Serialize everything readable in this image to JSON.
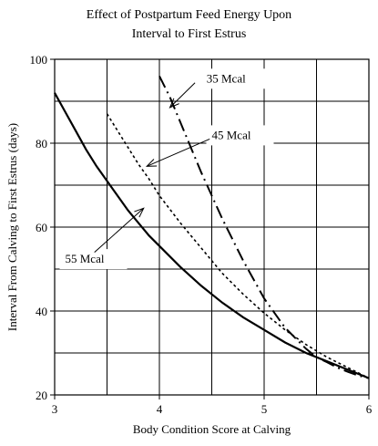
{
  "chart_data": {
    "type": "line",
    "title": [
      "Effect of Postpartum Feed Energy Upon",
      "Interval to First Estrus"
    ],
    "xlabel": "Body Condition Score at Calving",
    "ylabel": "Interval From Calving to First Estrus (days)",
    "xlim": [
      3,
      6
    ],
    "ylim": [
      20,
      100
    ],
    "xticks": [
      3,
      4,
      5,
      6
    ],
    "yticks": [
      20,
      40,
      60,
      80,
      100
    ],
    "grid": true,
    "series": [
      {
        "name": "35 Mcal",
        "style": "dash-dot",
        "color": "#000000",
        "points": [
          [
            4.0,
            96
          ],
          [
            4.1,
            91
          ],
          [
            4.2,
            85
          ],
          [
            4.3,
            79
          ],
          [
            4.4,
            73
          ],
          [
            4.5,
            67.5
          ],
          [
            4.6,
            62
          ],
          [
            4.7,
            57
          ],
          [
            4.8,
            52
          ],
          [
            4.9,
            47.5
          ],
          [
            5.0,
            43
          ],
          [
            5.1,
            39.5
          ],
          [
            5.2,
            36
          ],
          [
            5.3,
            33.5
          ],
          [
            5.4,
            31
          ],
          [
            5.5,
            29
          ],
          [
            5.6,
            27.8
          ],
          [
            5.7,
            26.5
          ],
          [
            5.8,
            25.5
          ],
          [
            5.9,
            24.6
          ],
          [
            6.0,
            24
          ]
        ]
      },
      {
        "name": "45 Mcal",
        "style": "dotted",
        "color": "#000000",
        "points": [
          [
            3.5,
            87
          ],
          [
            3.6,
            83
          ],
          [
            3.7,
            79
          ],
          [
            3.8,
            75
          ],
          [
            3.9,
            71.5
          ],
          [
            4.0,
            67.5
          ],
          [
            4.2,
            61
          ],
          [
            4.4,
            55
          ],
          [
            4.6,
            49
          ],
          [
            4.8,
            44
          ],
          [
            5.0,
            39.5
          ],
          [
            5.2,
            35.5
          ],
          [
            5.4,
            32
          ],
          [
            5.6,
            29
          ],
          [
            5.8,
            26.5
          ],
          [
            6.0,
            24
          ]
        ]
      },
      {
        "name": "55 Mcal",
        "style": "solid",
        "color": "#000000",
        "points": [
          [
            3.0,
            92
          ],
          [
            3.1,
            87.5
          ],
          [
            3.2,
            83
          ],
          [
            3.3,
            78.5
          ],
          [
            3.4,
            74.5
          ],
          [
            3.5,
            71
          ],
          [
            3.6,
            67.5
          ],
          [
            3.7,
            64
          ],
          [
            3.8,
            61
          ],
          [
            3.9,
            58
          ],
          [
            4.0,
            55.5
          ],
          [
            4.2,
            50.5
          ],
          [
            4.4,
            46
          ],
          [
            4.6,
            42
          ],
          [
            4.8,
            38.5
          ],
          [
            5.0,
            35.5
          ],
          [
            5.2,
            32.5
          ],
          [
            5.4,
            30
          ],
          [
            5.6,
            28
          ],
          [
            5.8,
            26
          ],
          [
            6.0,
            24
          ]
        ]
      }
    ],
    "annotations": [
      {
        "text": "35 Mcal",
        "series": "35 Mcal",
        "label_at": [
          4.45,
          94.5
        ],
        "arrow_from": [
          4.34,
          94.4
        ],
        "arrow_to": [
          4.1,
          88.5
        ]
      },
      {
        "text": "45 Mcal",
        "series": "45 Mcal",
        "label_at": [
          4.5,
          81
        ],
        "arrow_from": [
          4.48,
          81
        ],
        "arrow_to": [
          3.88,
          74.5
        ]
      },
      {
        "text": "55 Mcal",
        "series": "55 Mcal",
        "label_at": [
          3.1,
          51.5
        ],
        "arrow_from": [
          3.38,
          54
        ],
        "arrow_to": [
          3.85,
          64.5
        ]
      }
    ]
  }
}
